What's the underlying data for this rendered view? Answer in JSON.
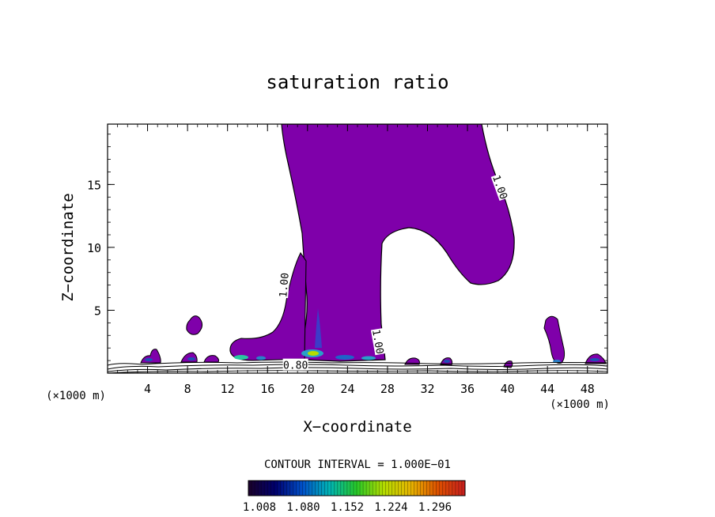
{
  "chart_data": {
    "type": "contour",
    "title": "saturation ratio",
    "xlabel": "X−coordinate",
    "ylabel": "Z−coordinate",
    "x_unit_left": "(×1000 m)",
    "x_unit_right": "(×1000 m)",
    "xlim": [
      0,
      50
    ],
    "ylim": [
      0,
      19.8
    ],
    "x_ticks": [
      4,
      8,
      12,
      16,
      20,
      24,
      28,
      32,
      36,
      40,
      44,
      48
    ],
    "y_ticks": [
      5,
      10,
      15
    ],
    "contour_labels": [
      {
        "text": "1.00",
        "x": 39.3,
        "z": 14.8,
        "rotate": 70
      },
      {
        "text": "1.00",
        "x": 17.6,
        "z": 7.0,
        "rotate": -85
      },
      {
        "text": "1.00",
        "x": 27.1,
        "z": 2.5,
        "rotate": 80
      },
      {
        "text": "0.80",
        "x": 18.8,
        "z": 0.65,
        "rotate": 0
      }
    ],
    "fill_color": "#7f00aa",
    "contour_interval_text": "CONTOUR INTERVAL = 1.000E−01",
    "colorbar": {
      "tick_labels": [
        "1.008",
        "1.080",
        "1.152",
        "1.224",
        "1.296"
      ],
      "colors": [
        "#1a002a",
        "#00006e",
        "#0050c8",
        "#00b4b4",
        "#28c828",
        "#b4dc00",
        "#e6b400",
        "#dc5000",
        "#c81e1e"
      ]
    }
  }
}
